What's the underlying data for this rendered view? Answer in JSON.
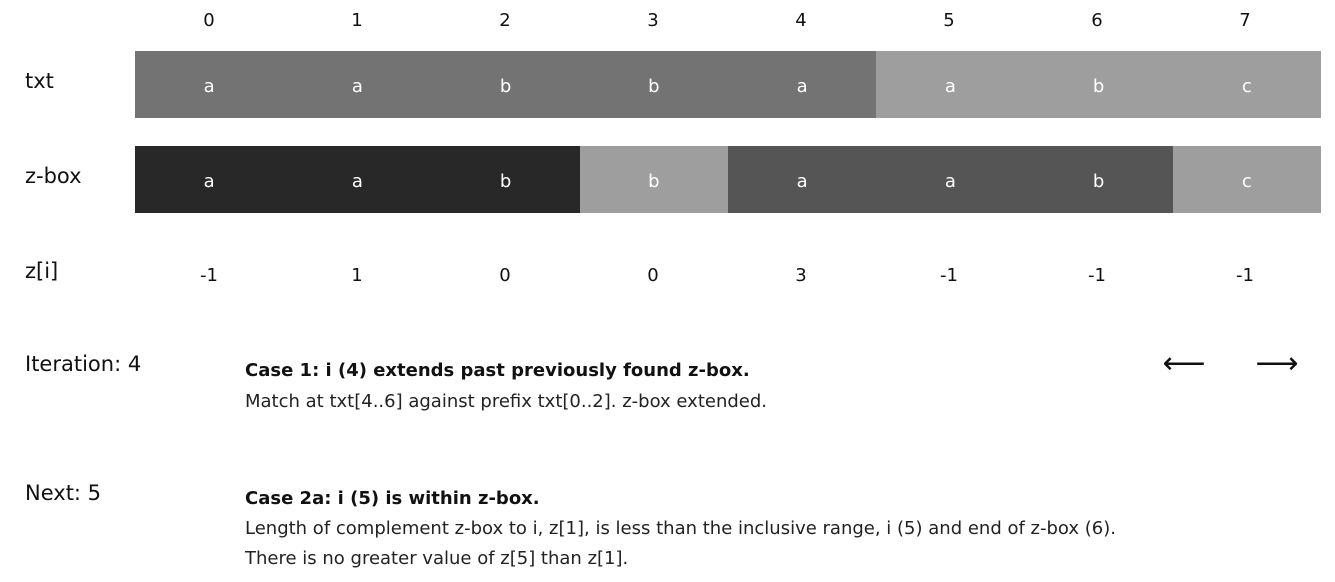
{
  "indices": [
    "0",
    "1",
    "2",
    "3",
    "4",
    "5",
    "6",
    "7"
  ],
  "rows": {
    "txt_label": "txt",
    "zbox_label": "z-box",
    "z_label": "z[i]"
  },
  "txt": {
    "chars": [
      "a",
      "a",
      "b",
      "b",
      "a",
      "a",
      "b",
      "c"
    ],
    "colors": [
      "#737373",
      "#737373",
      "#737373",
      "#737373",
      "#737373",
      "#9e9e9e",
      "#9e9e9e",
      "#9e9e9e"
    ]
  },
  "zbox": {
    "chars": [
      "a",
      "a",
      "b",
      "b",
      "a",
      "a",
      "b",
      "c"
    ],
    "colors": [
      "#282828",
      "#282828",
      "#282828",
      "#9e9e9e",
      "#555555",
      "#555555",
      "#555555",
      "#9e9e9e"
    ]
  },
  "z_values": [
    "-1",
    "1",
    "0",
    "0",
    "3",
    "-1",
    "-1",
    "-1"
  ],
  "iteration": {
    "label": "Iteration: 4",
    "title": "Case 1: i (4) extends past previously found z-box.",
    "lines": [
      "Match at txt[4..6] against prefix txt[0..2]. z-box extended."
    ]
  },
  "next": {
    "label": "Next: 5",
    "title": "Case 2a: i (5) is within z-box.",
    "lines": [
      "Length of complement z-box to i, z[1], is less than the inclusive range, i (5) and end of z-box (6).",
      "There is no greater value of z[5] than z[1]."
    ]
  },
  "nav": {
    "prev": "⟵",
    "next": "⟶"
  }
}
